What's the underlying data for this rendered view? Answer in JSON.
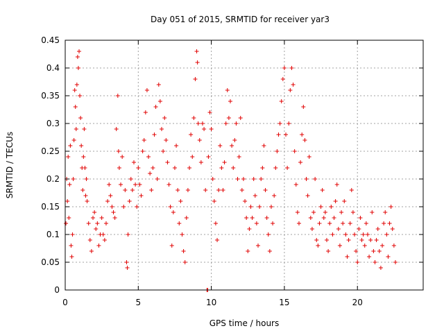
{
  "chart_data": {
    "type": "scatter",
    "title": "Day 051 of 2015, SRMTID for receiver yar3",
    "xlabel": "GPS time / hours",
    "ylabel": "SRMTID / TECUs",
    "xlim": [
      0,
      24.5
    ],
    "ylim": [
      0,
      0.45
    ],
    "xticks": [
      0,
      5,
      10,
      15,
      20
    ],
    "xtick_labels": [
      "0",
      "5",
      "10",
      "15",
      "20"
    ],
    "yticks": [
      0,
      0.05,
      0.1,
      0.15,
      0.2,
      0.25,
      0.3,
      0.35,
      0.4,
      0.45
    ],
    "ytick_labels": [
      "0",
      "0.05",
      "0.1",
      "0.15",
      "0.2",
      "0.25",
      "0.3",
      "0.35",
      "0.4",
      "0.45"
    ],
    "grid": true,
    "marker": "+",
    "color": "#e00000",
    "series": [
      {
        "name": "yar3",
        "points": [
          [
            0.05,
            0.12
          ],
          [
            0.1,
            0.2
          ],
          [
            0.15,
            0.16
          ],
          [
            0.2,
            0.24
          ],
          [
            0.25,
            0.13
          ],
          [
            0.3,
            0.19
          ],
          [
            0.35,
            0.26
          ],
          [
            0.4,
            0.08
          ],
          [
            0.45,
            0.06
          ],
          [
            0.5,
            0.1
          ],
          [
            0.55,
            0.2
          ],
          [
            0.6,
            0.27
          ],
          [
            0.65,
            0.36
          ],
          [
            0.7,
            0.33
          ],
          [
            0.75,
            0.29
          ],
          [
            0.8,
            0.37
          ],
          [
            0.85,
            0.42
          ],
          [
            0.9,
            0.4
          ],
          [
            0.95,
            0.43
          ],
          [
            1.0,
            0.35
          ],
          [
            1.05,
            0.31
          ],
          [
            1.1,
            0.26
          ],
          [
            1.15,
            0.22
          ],
          [
            1.2,
            0.18
          ],
          [
            1.25,
            0.24
          ],
          [
            1.3,
            0.29
          ],
          [
            1.35,
            0.22
          ],
          [
            1.4,
            0.17
          ],
          [
            1.45,
            0.2
          ],
          [
            1.5,
            0.16
          ],
          [
            1.6,
            0.12
          ],
          [
            1.7,
            0.09
          ],
          [
            1.8,
            0.07
          ],
          [
            1.9,
            0.13
          ],
          [
            2.0,
            0.14
          ],
          [
            2.1,
            0.11
          ],
          [
            2.2,
            0.12
          ],
          [
            2.3,
            0.08
          ],
          [
            2.4,
            0.1
          ],
          [
            2.5,
            0.13
          ],
          [
            2.6,
            0.1
          ],
          [
            2.7,
            0.09
          ],
          [
            2.8,
            0.12
          ],
          [
            2.9,
            0.16
          ],
          [
            3.0,
            0.19
          ],
          [
            3.1,
            0.17
          ],
          [
            3.2,
            0.15
          ],
          [
            3.3,
            0.14
          ],
          [
            3.4,
            0.13
          ],
          [
            3.5,
            0.29
          ],
          [
            3.6,
            0.35
          ],
          [
            3.65,
            0.25
          ],
          [
            3.7,
            0.22
          ],
          [
            3.8,
            0.19
          ],
          [
            3.9,
            0.24
          ],
          [
            4.0,
            0.15
          ],
          [
            4.1,
            0.18
          ],
          [
            4.2,
            0.05
          ],
          [
            4.25,
            0.04
          ],
          [
            4.3,
            0.1
          ],
          [
            4.4,
            0.16
          ],
          [
            4.5,
            0.2
          ],
          [
            4.6,
            0.18
          ],
          [
            4.7,
            0.23
          ],
          [
            4.8,
            0.19
          ],
          [
            4.9,
            0.15
          ],
          [
            5.0,
            0.22
          ],
          [
            5.1,
            0.19
          ],
          [
            5.2,
            0.17
          ],
          [
            5.3,
            0.25
          ],
          [
            5.4,
            0.27
          ],
          [
            5.5,
            0.32
          ],
          [
            5.6,
            0.36
          ],
          [
            5.7,
            0.24
          ],
          [
            5.8,
            0.21
          ],
          [
            5.9,
            0.18
          ],
          [
            6.0,
            0.22
          ],
          [
            6.1,
            0.28
          ],
          [
            6.2,
            0.33
          ],
          [
            6.3,
            0.2
          ],
          [
            6.4,
            0.37
          ],
          [
            6.5,
            0.34
          ],
          [
            6.6,
            0.29
          ],
          [
            6.7,
            0.25
          ],
          [
            6.8,
            0.31
          ],
          [
            6.9,
            0.27
          ],
          [
            7.0,
            0.23
          ],
          [
            7.1,
            0.19
          ],
          [
            7.2,
            0.15
          ],
          [
            7.3,
            0.08
          ],
          [
            7.4,
            0.14
          ],
          [
            7.5,
            0.22
          ],
          [
            7.6,
            0.26
          ],
          [
            7.7,
            0.18
          ],
          [
            7.8,
            0.12
          ],
          [
            7.9,
            0.16
          ],
          [
            8.0,
            0.1
          ],
          [
            8.1,
            0.07
          ],
          [
            8.2,
            0.05
          ],
          [
            8.3,
            0.13
          ],
          [
            8.4,
            0.18
          ],
          [
            8.5,
            0.22
          ],
          [
            8.6,
            0.28
          ],
          [
            8.7,
            0.24
          ],
          [
            8.8,
            0.31
          ],
          [
            8.9,
            0.38
          ],
          [
            9.0,
            0.43
          ],
          [
            9.05,
            0.41
          ],
          [
            9.1,
            0.3
          ],
          [
            9.2,
            0.27
          ],
          [
            9.3,
            0.23
          ],
          [
            9.4,
            0.3
          ],
          [
            9.5,
            0.29
          ],
          [
            9.6,
            0.18
          ],
          [
            9.7,
            0.0
          ],
          [
            9.75,
            0.0
          ],
          [
            9.8,
            0.24
          ],
          [
            9.9,
            0.32
          ],
          [
            10.0,
            0.29
          ],
          [
            10.1,
            0.2
          ],
          [
            10.2,
            0.16
          ],
          [
            10.3,
            0.12
          ],
          [
            10.4,
            0.09
          ],
          [
            10.5,
            0.18
          ],
          [
            10.6,
            0.26
          ],
          [
            10.7,
            0.22
          ],
          [
            10.8,
            0.18
          ],
          [
            10.9,
            0.23
          ],
          [
            11.0,
            0.3
          ],
          [
            11.1,
            0.36
          ],
          [
            11.2,
            0.31
          ],
          [
            11.3,
            0.34
          ],
          [
            11.4,
            0.26
          ],
          [
            11.5,
            0.22
          ],
          [
            11.6,
            0.27
          ],
          [
            11.7,
            0.3
          ],
          [
            11.8,
            0.2
          ],
          [
            11.9,
            0.24
          ],
          [
            12.0,
            0.31
          ],
          [
            12.1,
            0.18
          ],
          [
            12.2,
            0.2
          ],
          [
            12.3,
            0.16
          ],
          [
            12.4,
            0.13
          ],
          [
            12.5,
            0.07
          ],
          [
            12.6,
            0.11
          ],
          [
            12.7,
            0.15
          ],
          [
            12.8,
            0.13
          ],
          [
            12.9,
            0.2
          ],
          [
            13.0,
            0.17
          ],
          [
            13.1,
            0.12
          ],
          [
            13.2,
            0.08
          ],
          [
            13.3,
            0.15
          ],
          [
            13.4,
            0.2
          ],
          [
            13.5,
            0.22
          ],
          [
            13.6,
            0.26
          ],
          [
            13.7,
            0.18
          ],
          [
            13.8,
            0.13
          ],
          [
            13.9,
            0.1
          ],
          [
            14.0,
            0.07
          ],
          [
            14.1,
            0.15
          ],
          [
            14.2,
            0.12
          ],
          [
            14.3,
            0.17
          ],
          [
            14.4,
            0.22
          ],
          [
            14.5,
            0.25
          ],
          [
            14.6,
            0.28
          ],
          [
            14.7,
            0.3
          ],
          [
            14.8,
            0.34
          ],
          [
            14.9,
            0.38
          ],
          [
            15.0,
            0.4
          ],
          [
            15.1,
            0.28
          ],
          [
            15.2,
            0.22
          ],
          [
            15.3,
            0.3
          ],
          [
            15.4,
            0.36
          ],
          [
            15.5,
            0.4
          ],
          [
            15.6,
            0.37
          ],
          [
            15.7,
            0.25
          ],
          [
            15.8,
            0.19
          ],
          [
            15.9,
            0.14
          ],
          [
            16.0,
            0.12
          ],
          [
            16.1,
            0.23
          ],
          [
            16.2,
            0.28
          ],
          [
            16.3,
            0.33
          ],
          [
            16.4,
            0.27
          ],
          [
            16.5,
            0.2
          ],
          [
            16.6,
            0.17
          ],
          [
            16.7,
            0.24
          ],
          [
            16.8,
            0.13
          ],
          [
            16.9,
            0.11
          ],
          [
            17.0,
            0.14
          ],
          [
            17.1,
            0.2
          ],
          [
            17.2,
            0.09
          ],
          [
            17.3,
            0.08
          ],
          [
            17.4,
            0.12
          ],
          [
            17.5,
            0.15
          ],
          [
            17.6,
            0.18
          ],
          [
            17.7,
            0.13
          ],
          [
            17.8,
            0.14
          ],
          [
            17.9,
            0.09
          ],
          [
            18.0,
            0.07
          ],
          [
            18.1,
            0.12
          ],
          [
            18.2,
            0.15
          ],
          [
            18.3,
            0.1
          ],
          [
            18.4,
            0.13
          ],
          [
            18.5,
            0.16
          ],
          [
            18.6,
            0.19
          ],
          [
            18.7,
            0.11
          ],
          [
            18.8,
            0.08
          ],
          [
            18.9,
            0.14
          ],
          [
            19.0,
            0.12
          ],
          [
            19.1,
            0.16
          ],
          [
            19.2,
            0.1
          ],
          [
            19.3,
            0.06
          ],
          [
            19.4,
            0.09
          ],
          [
            19.5,
            0.12
          ],
          [
            19.6,
            0.18
          ],
          [
            19.7,
            0.14
          ],
          [
            19.8,
            0.1
          ],
          [
            19.9,
            0.07
          ],
          [
            20.0,
            0.05
          ],
          [
            20.1,
            0.11
          ],
          [
            20.2,
            0.13
          ],
          [
            20.3,
            0.09
          ],
          [
            20.4,
            0.1
          ],
          [
            20.5,
            0.08
          ],
          [
            20.6,
            0.12
          ],
          [
            20.7,
            0.1
          ],
          [
            20.8,
            0.06
          ],
          [
            20.9,
            0.09
          ],
          [
            21.0,
            0.14
          ],
          [
            21.1,
            0.07
          ],
          [
            21.2,
            0.05
          ],
          [
            21.3,
            0.09
          ],
          [
            21.4,
            0.11
          ],
          [
            21.5,
            0.07
          ],
          [
            21.6,
            0.04
          ],
          [
            21.7,
            0.08
          ],
          [
            21.8,
            0.12
          ],
          [
            21.9,
            0.14
          ],
          [
            22.0,
            0.1
          ],
          [
            22.1,
            0.06
          ],
          [
            22.2,
            0.12
          ],
          [
            22.3,
            0.15
          ],
          [
            22.4,
            0.11
          ],
          [
            22.5,
            0.08
          ],
          [
            22.6,
            0.05
          ]
        ]
      }
    ]
  }
}
